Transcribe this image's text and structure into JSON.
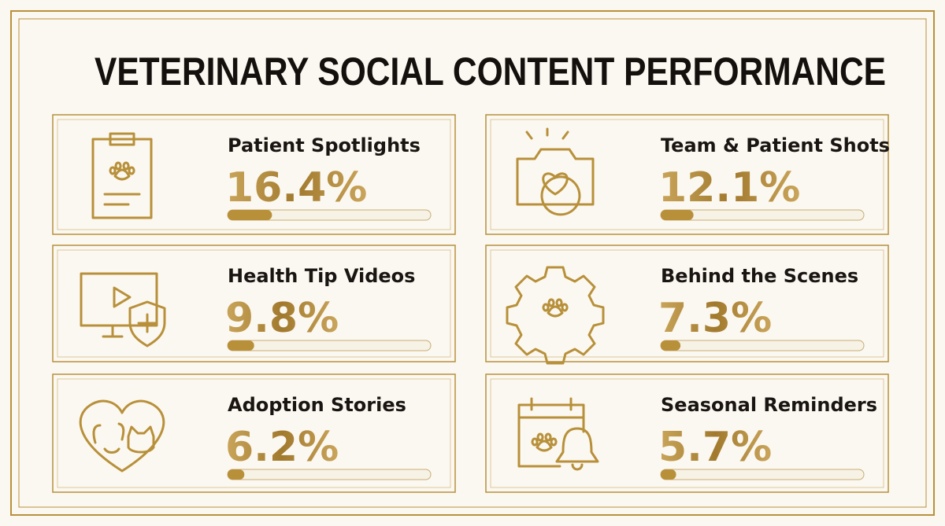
{
  "chart_data": {
    "type": "bar",
    "title": "VETERINARY SOCIAL CONTENT PERFORMANCE",
    "categories": [
      "Patient Spotlights",
      "Team & Patient Shots",
      "Health Tip Videos",
      "Behind the Scenes",
      "Adoption Stories",
      "Seasonal Reminders"
    ],
    "values": [
      16.4,
      12.1,
      9.8,
      7.3,
      6.2,
      5.7
    ],
    "value_labels": [
      "16.4%",
      "12.1%",
      "9.8%",
      "7.3%",
      "6.2%",
      "5.7%"
    ],
    "xlim": [
      0,
      75
    ],
    "color": "#b8903a"
  }
}
